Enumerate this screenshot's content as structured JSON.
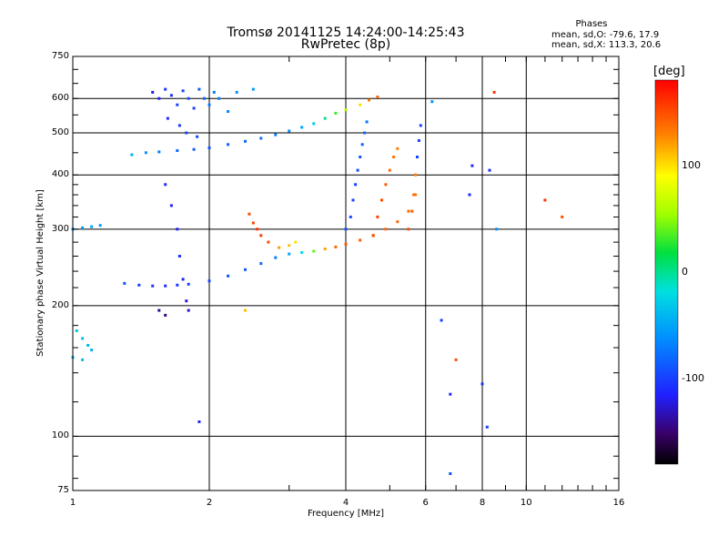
{
  "chart_data": {
    "type": "scatter",
    "title": "Tromsø 20141125 14:24:00-14:25:43",
    "subtitle": "RwPretec (8p)",
    "xlabel": "Frequency [MHz]",
    "ylabel": "Stationary phase Virtual Height [km]",
    "x_scale": "log",
    "y_scale": "log",
    "xlim": [
      1,
      16
    ],
    "ylim": [
      75,
      750
    ],
    "x_ticks": [
      1,
      2,
      4,
      6,
      8,
      10,
      16
    ],
    "y_ticks": [
      75,
      100,
      200,
      300,
      400,
      500,
      600,
      750
    ],
    "grid": true,
    "stats": {
      "heading": "Phases",
      "line_o": "mean, sd,O: -79.6, 17.9",
      "line_x": "mean, sd,X: 113.3, 20.6"
    },
    "colorbar": {
      "label": "[deg]",
      "min": -180,
      "max": 180,
      "ticks": [
        100,
        0,
        -100
      ]
    },
    "series": [
      {
        "points": [
          [
            1.5,
            620,
            -120
          ],
          [
            1.55,
            600,
            -115
          ],
          [
            1.6,
            630,
            -105
          ],
          [
            1.65,
            610,
            -110
          ],
          [
            1.7,
            580,
            -100
          ],
          [
            1.75,
            625,
            -95
          ],
          [
            1.8,
            600,
            -90
          ],
          [
            1.85,
            570,
            -100
          ],
          [
            1.9,
            630,
            -85
          ],
          [
            1.95,
            600,
            -80
          ],
          [
            2.0,
            580,
            -75
          ],
          [
            2.05,
            620,
            -70
          ],
          [
            2.1,
            600,
            -70
          ],
          [
            2.2,
            560,
            -65
          ],
          [
            2.3,
            620,
            -60
          ],
          [
            2.5,
            630,
            -55
          ],
          [
            1.62,
            540,
            -110
          ],
          [
            1.72,
            520,
            -105
          ],
          [
            1.78,
            500,
            -100
          ],
          [
            1.88,
            490,
            -95
          ]
        ]
      },
      {
        "points": [
          [
            1.35,
            445,
            -45
          ],
          [
            1.45,
            450,
            -60
          ],
          [
            1.55,
            452,
            -70
          ],
          [
            1.7,
            455,
            -80
          ],
          [
            1.85,
            458,
            -85
          ],
          [
            2.0,
            462,
            -90
          ],
          [
            2.2,
            470,
            -85
          ],
          [
            2.4,
            478,
            -80
          ],
          [
            2.6,
            486,
            -75
          ],
          [
            2.8,
            495,
            -70
          ],
          [
            3.0,
            505,
            -60
          ],
          [
            3.2,
            515,
            -50
          ],
          [
            3.4,
            525,
            -30
          ],
          [
            3.6,
            540,
            0
          ],
          [
            3.8,
            555,
            30
          ],
          [
            4.0,
            565,
            60
          ],
          [
            4.3,
            580,
            100
          ],
          [
            4.5,
            595,
            130
          ],
          [
            4.7,
            605,
            140
          ]
        ]
      },
      {
        "points": [
          [
            1.3,
            225,
            -90
          ],
          [
            1.4,
            223,
            -100
          ],
          [
            1.5,
            222,
            -105
          ],
          [
            1.6,
            222,
            -110
          ],
          [
            1.7,
            223,
            -105
          ],
          [
            1.8,
            224,
            -100
          ],
          [
            2.0,
            228,
            -95
          ],
          [
            2.2,
            234,
            -90
          ],
          [
            2.4,
            242,
            -85
          ],
          [
            2.6,
            250,
            -80
          ],
          [
            2.8,
            258,
            -70
          ],
          [
            3.0,
            263,
            -50
          ],
          [
            3.2,
            265,
            -20
          ],
          [
            3.4,
            267,
            40
          ],
          [
            3.6,
            270,
            120
          ],
          [
            3.8,
            273,
            140
          ],
          [
            4.0,
            277,
            145
          ],
          [
            4.3,
            283,
            145
          ],
          [
            4.6,
            290,
            145
          ],
          [
            4.9,
            300,
            140
          ],
          [
            5.2,
            312,
            140
          ],
          [
            5.5,
            330,
            140
          ],
          [
            5.7,
            360,
            135
          ]
        ]
      },
      {
        "points": [
          [
            4.0,
            300,
            -90
          ],
          [
            4.1,
            320,
            -95
          ],
          [
            4.15,
            350,
            -100
          ],
          [
            4.2,
            380,
            -100
          ],
          [
            4.25,
            410,
            -95
          ],
          [
            4.3,
            440,
            -90
          ],
          [
            4.35,
            470,
            -85
          ],
          [
            4.4,
            500,
            -80
          ],
          [
            4.45,
            530,
            -75
          ]
        ]
      },
      {
        "points": [
          [
            4.6,
            290,
            150
          ],
          [
            4.7,
            320,
            155
          ],
          [
            4.8,
            350,
            150
          ],
          [
            4.9,
            380,
            145
          ],
          [
            5.0,
            410,
            140
          ],
          [
            5.1,
            440,
            135
          ],
          [
            5.2,
            460,
            130
          ]
        ]
      },
      {
        "points": [
          [
            5.5,
            300,
            150
          ],
          [
            5.6,
            330,
            145
          ],
          [
            5.65,
            360,
            140
          ],
          [
            5.7,
            400,
            130
          ],
          [
            5.75,
            440,
            -100
          ],
          [
            5.8,
            480,
            -100
          ],
          [
            5.85,
            520,
            -100
          ]
        ]
      },
      {
        "points": [
          [
            2.45,
            325,
            150
          ],
          [
            2.5,
            310,
            155
          ],
          [
            2.55,
            300,
            160
          ],
          [
            2.6,
            290,
            155
          ],
          [
            2.7,
            280,
            150
          ],
          [
            2.85,
            272,
            120
          ],
          [
            3.0,
            275,
            110
          ],
          [
            3.1,
            280,
            100
          ]
        ]
      },
      {
        "points": [
          [
            1.0,
            300,
            -60
          ],
          [
            1.05,
            302,
            -55
          ],
          [
            1.1,
            304,
            -50
          ],
          [
            1.15,
            306,
            -55
          ],
          [
            1.02,
            175,
            -30
          ],
          [
            1.05,
            168,
            -35
          ],
          [
            1.08,
            162,
            -40
          ],
          [
            1.1,
            158,
            -45
          ],
          [
            1.0,
            152,
            -40
          ],
          [
            1.05,
            150,
            -35
          ]
        ]
      },
      {
        "points": [
          [
            1.6,
            380,
            -110
          ],
          [
            1.65,
            340,
            -115
          ],
          [
            1.7,
            300,
            -115
          ],
          [
            1.72,
            260,
            -110
          ],
          [
            1.75,
            230,
            -115
          ],
          [
            1.78,
            205,
            -125
          ],
          [
            1.8,
            195,
            -130
          ],
          [
            1.55,
            195,
            -140
          ],
          [
            1.6,
            190,
            -145
          ]
        ]
      },
      {
        "points": [
          [
            1.9,
            108,
            -110
          ],
          [
            6.5,
            185,
            -100
          ],
          [
            6.8,
            125,
            -110
          ],
          [
            8.0,
            132,
            -110
          ],
          [
            8.2,
            105,
            -100
          ],
          [
            7.5,
            360,
            -110
          ],
          [
            8.6,
            300,
            -60
          ],
          [
            7.0,
            150,
            150
          ],
          [
            11.0,
            350,
            160
          ],
          [
            12.0,
            320,
            150
          ],
          [
            8.5,
            620,
            160
          ],
          [
            2.4,
            195,
            110
          ],
          [
            6.8,
            82,
            -90
          ],
          [
            6.2,
            590,
            -60
          ],
          [
            7.6,
            420,
            -110
          ],
          [
            8.3,
            410,
            -110
          ]
        ]
      }
    ]
  }
}
